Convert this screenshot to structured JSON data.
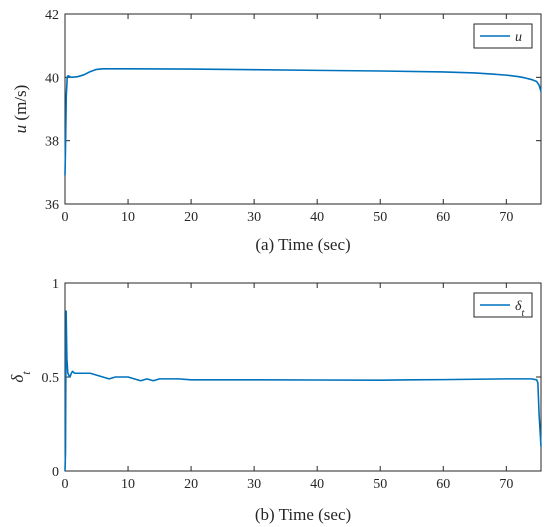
{
  "chart_data": [
    {
      "type": "line",
      "xlabel": "(a) Time (sec)",
      "ylabel_symbol": "u",
      "ylabel_unit": " (m/s)",
      "xlim": [
        0,
        75.5
      ],
      "ylim": [
        36,
        42
      ],
      "xticks": [
        0,
        10,
        20,
        30,
        40,
        50,
        60,
        70
      ],
      "yticks": [
        36,
        38,
        40,
        42
      ],
      "legend": {
        "placement": "top-right",
        "entries": [
          "u"
        ]
      },
      "series": [
        {
          "name": "u",
          "color": "#0072BD",
          "x": [
            0,
            0.1,
            0.2,
            0.35,
            0.5,
            1,
            2,
            3,
            4,
            5,
            6,
            7,
            10,
            20,
            30,
            40,
            50,
            60,
            65,
            68,
            70,
            72,
            73,
            74,
            74.8,
            75.2,
            75.5
          ],
          "y": [
            36.9,
            38.0,
            39.4,
            40.0,
            40.05,
            40.0,
            40.02,
            40.08,
            40.18,
            40.25,
            40.27,
            40.27,
            40.27,
            40.26,
            40.24,
            40.22,
            40.2,
            40.17,
            40.14,
            40.1,
            40.07,
            40.02,
            39.98,
            39.93,
            39.87,
            39.75,
            39.55
          ]
        }
      ]
    },
    {
      "type": "line",
      "xlabel": "(b) Time (sec)",
      "ylabel_symbol": "δ",
      "ylabel_sub": "t",
      "xlim": [
        0,
        75.5
      ],
      "ylim": [
        0,
        1
      ],
      "xticks": [
        0,
        10,
        20,
        30,
        40,
        50,
        60,
        70
      ],
      "yticks": [
        0,
        0.5,
        1
      ],
      "legend": {
        "placement": "top-right",
        "entries": [
          "δt"
        ]
      },
      "series": [
        {
          "name": "δt",
          "color": "#0072BD",
          "x": [
            0,
            0.08,
            0.18,
            0.3,
            0.45,
            0.6,
            0.8,
            1.0,
            1.2,
            1.5,
            2,
            3,
            4,
            5,
            6,
            7,
            8,
            9,
            10,
            11,
            12,
            13,
            14,
            15,
            16,
            18,
            20,
            25,
            30,
            40,
            50,
            55,
            60,
            65,
            70,
            74,
            74.8,
            75.0,
            75.2,
            75.5
          ],
          "y": [
            0.0,
            0.1,
            0.85,
            0.6,
            0.52,
            0.51,
            0.5,
            0.52,
            0.53,
            0.52,
            0.52,
            0.52,
            0.52,
            0.51,
            0.5,
            0.49,
            0.5,
            0.5,
            0.5,
            0.49,
            0.48,
            0.49,
            0.48,
            0.49,
            0.49,
            0.49,
            0.485,
            0.485,
            0.485,
            0.484,
            0.483,
            0.485,
            0.486,
            0.488,
            0.49,
            0.49,
            0.485,
            0.47,
            0.3,
            0.13
          ]
        }
      ]
    }
  ]
}
